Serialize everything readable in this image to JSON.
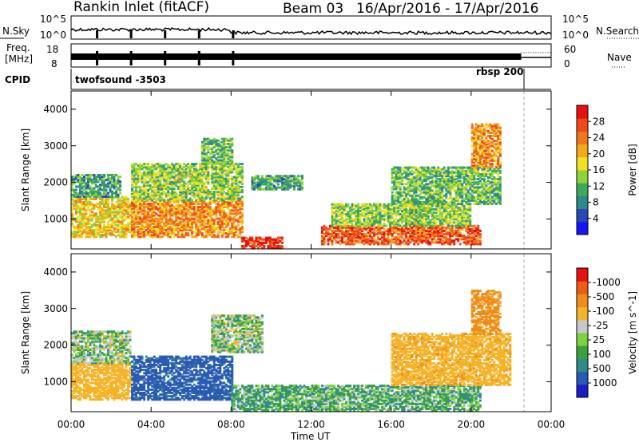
{
  "header": {
    "station": "Rankin Inlet (fitACF)",
    "beam": "Beam 03",
    "date_range": "16/Apr/2016 - 17/Apr/2016"
  },
  "panels": {
    "nsky": {
      "label": "N.Sky",
      "right_label": "N.Search",
      "left_ticks": [
        "10^5",
        "10^0"
      ],
      "right_ticks": [
        "10^5",
        "10^0"
      ]
    },
    "freq": {
      "label_top": "Freq.",
      "label_unit": "[MHz]",
      "left_ticks": [
        "18",
        "8"
      ],
      "right_label": "Nave",
      "right_ticks": [
        "60",
        "0"
      ]
    },
    "cpid": {
      "label": "CPID",
      "segments": [
        "twofsound -3503",
        "rbsp 200"
      ]
    }
  },
  "chart_data": [
    {
      "type": "heatmap",
      "title": "Power",
      "ylabel": "Slant Range [km]",
      "xlabel": "Time UT",
      "x_ticks": [
        "00:00",
        "04:00",
        "08:00",
        "12:00",
        "16:00",
        "20:00",
        "00:00"
      ],
      "y_ticks": [
        1000,
        2000,
        3000,
        4000
      ],
      "ylim": [
        180,
        4500
      ],
      "colorbar": {
        "label": "Power [dB]",
        "ticks": [
          4,
          8,
          12,
          16,
          20,
          24,
          28
        ],
        "colors": [
          "#1414ff",
          "#2848b4",
          "#2e8a8a",
          "#3caa5a",
          "#8fd23a",
          "#f0e020",
          "#f5a818",
          "#f07818",
          "#f04818",
          "#e81010"
        ]
      },
      "regions": [
        {
          "t0": 0.0,
          "t1": 3.0,
          "r0": 500,
          "r1": 1600,
          "level": 18
        },
        {
          "t0": 0.0,
          "t1": 2.5,
          "r0": 1600,
          "r1": 2200,
          "level": 10
        },
        {
          "t0": 3.0,
          "t1": 8.5,
          "r0": 500,
          "r1": 1500,
          "level": 22
        },
        {
          "t0": 3.0,
          "t1": 8.5,
          "r0": 1500,
          "r1": 2500,
          "level": 14
        },
        {
          "t0": 6.5,
          "t1": 8.0,
          "r0": 2500,
          "r1": 3200,
          "level": 12
        },
        {
          "t0": 8.5,
          "t1": 10.5,
          "r0": 200,
          "r1": 500,
          "level": 28
        },
        {
          "t0": 9.0,
          "t1": 11.5,
          "r0": 1800,
          "r1": 2200,
          "level": 10
        },
        {
          "t0": 12.5,
          "t1": 20.5,
          "r0": 300,
          "r1": 800,
          "level": 25
        },
        {
          "t0": 13.0,
          "t1": 20.0,
          "r0": 800,
          "r1": 1400,
          "level": 14
        },
        {
          "t0": 16.0,
          "t1": 21.5,
          "r0": 1400,
          "r1": 2400,
          "level": 12
        },
        {
          "t0": 20.0,
          "t1": 21.5,
          "r0": 2400,
          "r1": 3600,
          "level": 22
        }
      ]
    },
    {
      "type": "heatmap",
      "title": "Velocity",
      "ylabel": "Slant Range [km]",
      "xlabel": "Time UT",
      "x_ticks": [
        "00:00",
        "04:00",
        "08:00",
        "12:00",
        "16:00",
        "20:00",
        "00:00"
      ],
      "y_ticks": [
        1000,
        2000,
        3000,
        4000
      ],
      "ylim": [
        180,
        4500
      ],
      "colorbar": {
        "label": "Velocity [m s^-1]",
        "ticks": [
          1000,
          500,
          100,
          25,
          -25,
          -100,
          -500,
          -1000
        ],
        "colors": [
          "#1c1cc8",
          "#2a5ab4",
          "#2f8c8c",
          "#3ca03c",
          "#7cd23c",
          "#c8c8c8",
          "#f5b428",
          "#f08c18",
          "#f05a14",
          "#e81010"
        ]
      },
      "regions": [
        {
          "t0": 0.0,
          "t1": 3.0,
          "r0": 500,
          "r1": 1500,
          "vel": -300
        },
        {
          "t0": 0.0,
          "t1": 3.0,
          "r0": 1500,
          "r1": 2400,
          "vel": 0
        },
        {
          "t0": 3.0,
          "t1": 8.0,
          "r0": 500,
          "r1": 1700,
          "vel": 600
        },
        {
          "t0": 7.0,
          "t1": 9.5,
          "r0": 1800,
          "r1": 2800,
          "vel": 0
        },
        {
          "t0": 8.0,
          "t1": 12.0,
          "r0": 200,
          "r1": 900,
          "vel": 80
        },
        {
          "t0": 12.0,
          "t1": 20.5,
          "r0": 200,
          "r1": 900,
          "vel": 60
        },
        {
          "t0": 16.0,
          "t1": 22.0,
          "r0": 900,
          "r1": 2300,
          "vel": -400
        },
        {
          "t0": 20.0,
          "t1": 21.5,
          "r0": 2300,
          "r1": 3500,
          "vel": -600
        }
      ]
    }
  ]
}
